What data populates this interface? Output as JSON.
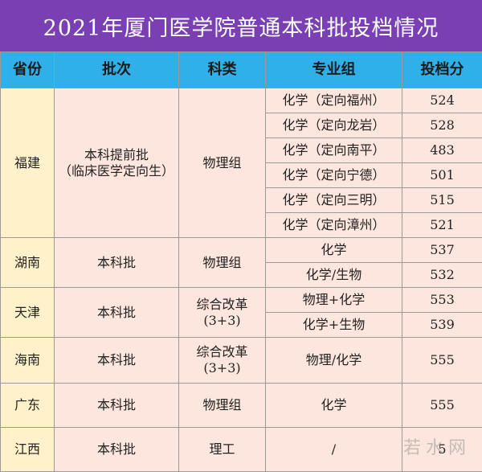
{
  "title": "2021年厦门医学院普通本科批投档情况",
  "headers": [
    "省份",
    "批次",
    "科类",
    "专业组",
    "投档分"
  ],
  "fujian": {
    "province": "福建",
    "batch_line1": "本科提前批",
    "batch_line2": "（临床医学定向生）",
    "category": "物理组",
    "rows": [
      {
        "group": "化学（定向福州）",
        "score": "524"
      },
      {
        "group": "化学（定向龙岩）",
        "score": "528"
      },
      {
        "group": "化学（定向南平）",
        "score": "483"
      },
      {
        "group": "化学（定向宁德）",
        "score": "501"
      },
      {
        "group": "化学（定向三明）",
        "score": "515"
      },
      {
        "group": "化学（定向漳州）",
        "score": "521"
      }
    ]
  },
  "hunan": {
    "province": "湖南",
    "batch": "本科批",
    "category": "物理组",
    "rows": [
      {
        "group": "化学",
        "score": "537"
      },
      {
        "group": "化学/生物",
        "score": "532"
      }
    ]
  },
  "tianjin": {
    "province": "天津",
    "batch": "本科批",
    "category_line1": "综合改革",
    "category_line2": "(3+3)",
    "rows": [
      {
        "group": "物理+化学",
        "score": "553"
      },
      {
        "group": "化学+生物",
        "score": "539"
      }
    ]
  },
  "hainan": {
    "province": "海南",
    "batch": "本科批",
    "category_line1": "综合改革",
    "category_line2": "(3+3)",
    "group": "物理/化学",
    "score": "555"
  },
  "guangdong": {
    "province": "广东",
    "batch": "本科批",
    "category": "物理组",
    "group": "化学",
    "score": "555"
  },
  "jiangxi": {
    "province": "江西",
    "batch": "本科批",
    "category": "理工",
    "group": "/",
    "score": "5"
  },
  "watermark": "若水网",
  "colors": {
    "title_bg": "#7a3fb3",
    "header_bg": "#2fb0e9",
    "province_bg": "#fff1c9",
    "body_bg": "#fde6dd"
  }
}
